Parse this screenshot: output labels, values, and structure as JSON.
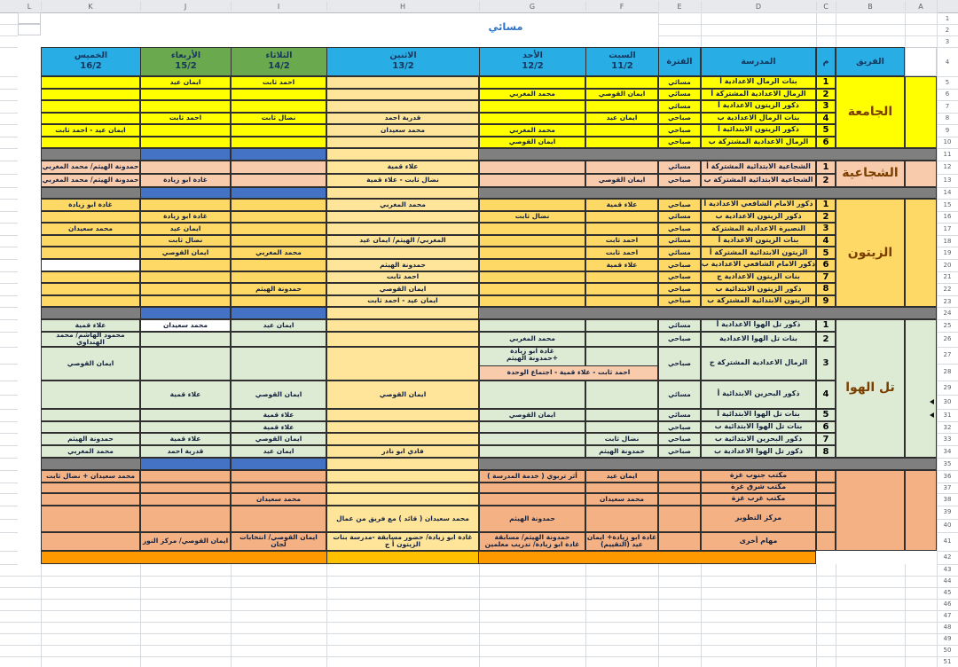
{
  "sheet": {
    "title": "مسائي",
    "column_letters": [
      "L",
      "K",
      "J",
      "I",
      "H",
      "G",
      "F",
      "E",
      "D",
      "C",
      "B",
      "A"
    ],
    "top_row_numbers": [
      1,
      2,
      3
    ],
    "header_row_number": 4,
    "header": {
      "days": [
        {
          "col": "K",
          "name": "الخميس",
          "date": "16/2",
          "color": "blue"
        },
        {
          "col": "J",
          "name": "الأربعاء",
          "date": "15/2",
          "color": "green"
        },
        {
          "col": "I",
          "name": "الثلاثاء",
          "date": "14/2",
          "color": "green"
        },
        {
          "col": "H",
          "name": "الاثنين",
          "date": "13/2",
          "color": "blue"
        },
        {
          "col": "G",
          "name": "الأحد",
          "date": "12/2",
          "color": "blue"
        },
        {
          "col": "F",
          "name": "السبت",
          "date": "11/2",
          "color": "blue"
        }
      ],
      "period_label": "الفترة",
      "school_label": "المدرسة",
      "num_label": "م",
      "team_label": "الفريق"
    },
    "colors": {
      "header_blue": "#28ADE4",
      "header_green": "#6AA94E",
      "separator_grey": "#7F7F7F",
      "separator_blue": "#4472C4",
      "footer_orange": "#FF9900",
      "footer_amber": "#FFC000",
      "pink": "#F8CBAD"
    },
    "sections": [
      {
        "label": "الجامعة",
        "bg": "#FFFF00",
        "hbg": "#FFE59A",
        "rows": [
          {
            "n": "1",
            "school": "بنات الرمال الاعدادية أ",
            "shift": "مسائي",
            "rownums": [
              5
            ],
            "cells": {
              "J": "ايمان عيد",
              "I": "احمد ثابت"
            }
          },
          {
            "n": "2",
            "school": "الرمال الاعدادية المشتركة أ",
            "shift": "مسائي",
            "rownums": [
              6
            ],
            "cells": {
              "G": "محمد المغربي",
              "F": "ايمان القوصي"
            }
          },
          {
            "n": "3",
            "school": "ذكور الزيتون الاعدادية أ",
            "shift": "مسائي",
            "rownums": [
              7
            ],
            "cells": {}
          },
          {
            "n": "4",
            "school": "بنات الرمال الاعدادية ب",
            "shift": "صباحي",
            "rownums": [
              8
            ],
            "cells": {
              "J": "احمد ثابت",
              "I": "نضال ثابت",
              "H": "قدرية احمد",
              "F": "ايمان عيد"
            }
          },
          {
            "n": "5",
            "school": "ذكور الزيتون الابتدائية أ",
            "shift": "صباحي",
            "rownums": [
              9
            ],
            "cells": {
              "K": "ايمان عيد - احمد ثابت",
              "H": "محمد سعيدان",
              "G": "محمد المغربي"
            }
          },
          {
            "n": "6",
            "school": "الرمال الاعدادية المشتركة ب",
            "shift": "صباحي",
            "rownums": [
              10
            ],
            "cells": {
              "G": "ايمان القوصي"
            }
          }
        ]
      },
      {
        "label": "الشجاعية",
        "bg": "#F7CBAC",
        "hbg": "#FFE59A",
        "rows": [
          {
            "n": "1",
            "school": "الشجاعية الابتدائية المشتركة أ",
            "shift": "مسائي",
            "rownums": [
              12
            ],
            "cells": {
              "K": "حمدونة الهيثم/ محمد المغربي",
              "H": "علاء قمية"
            }
          },
          {
            "n": "2",
            "school": "الشجاعية الابتدائية المشتركة ب",
            "shift": "صباحي",
            "rownums": [
              13
            ],
            "cells": {
              "K": "حمدونة الهيثم/ محمد المغربي",
              "J": "غادة ابو زيادة",
              "H": "نضال ثابت - علاء قمية",
              "F": "ايمان القوصي"
            }
          }
        ]
      },
      {
        "label": "الزيتون",
        "bg": "#FFD966",
        "hbg": "#FFE59A",
        "rows": [
          {
            "n": "1",
            "school": "ذكور الامام الشافعي الاعدادية أ",
            "shift": "صباحي",
            "rownums": [
              15
            ],
            "cells": {
              "K": "غادة ابو زيادة",
              "H": "محمد المغربي",
              "F": "علاء قمية"
            }
          },
          {
            "n": "2",
            "school": "ذكور الزيتون الاعدادية ب",
            "shift": "مسائي",
            "rownums": [
              16
            ],
            "cells": {
              "J": "غادة ابو زيادة",
              "G": "نضال ثابت"
            }
          },
          {
            "n": "3",
            "school": "النصيرة الاعدادية المشتركة",
            "shift": "صباحي",
            "rownums": [
              17
            ],
            "cells": {
              "K": "محمد سعيدان",
              "J": "ايمان عيد"
            }
          },
          {
            "n": "4",
            "school": "بنات الزيتون الاعدادية أ",
            "shift": "مسائي",
            "rownums": [
              18
            ],
            "cells": {
              "J": "نضال ثابت",
              "H": "المغربي/ الهيثم/ ايمان عيد",
              "F": "احمد ثابت"
            }
          },
          {
            "n": "5",
            "school": "الزيتون الابتدائية المشتركة أ",
            "shift": "مسائي",
            "rownums": [
              19
            ],
            "cells": {
              "J": "ايمان القوصي",
              "I": "محمد المغربي",
              "F": "احمد ثابت"
            }
          },
          {
            "n": "6",
            "school": "ذكور الامام الشافعي الاعدادية ب",
            "shift": "صباحي",
            "rownums": [
              20
            ],
            "white": [
              "K"
            ],
            "cells": {
              "H": "حمدونة الهيثم",
              "F": "علاء قمية"
            }
          },
          {
            "n": "7",
            "school": "بنات الزيتون الاعدادية ج",
            "shift": "صباحي",
            "rownums": [
              21
            ],
            "cells": {
              "H": "احمد ثابت"
            }
          },
          {
            "n": "8",
            "school": "ذكور الزيتون الابتدائية ب",
            "shift": "صباحي",
            "rownums": [
              22
            ],
            "cells": {
              "I": "حمدونة الهيثم",
              "H": "ايمان القوصي"
            }
          },
          {
            "n": "9",
            "school": "الزيتون الابتدائية المشتركة ب",
            "shift": "صباحي",
            "rownums": [
              23
            ],
            "cells": {
              "H": "ايمان عيد - احمد ثابت"
            }
          }
        ]
      },
      {
        "label": "تل الهوا",
        "bg": "#DDEBD4",
        "hbg": "#FFE59A",
        "rows": [
          {
            "n": "1",
            "school": "ذكور تل الهوا الاعدادية أ",
            "shift": "مسائي",
            "rownums": [
              25
            ],
            "white": [
              "J"
            ],
            "cells": {
              "K": "علاء قمية",
              "J": "محمد سعيدان",
              "I": "ايمان عيد"
            }
          },
          {
            "n": "2",
            "school": "بنات تل الهوا الاعدادية",
            "shift": "صباحي",
            "rownums": [
              26
            ],
            "cells": {
              "K": "محمود الهاشم/ محمد الهنداوي",
              "G": "محمد المغربي"
            }
          },
          {
            "n": "3",
            "school": "الرمال الاعدادية المشتركة ج",
            "shift": "صباحي",
            "rownums": [
              27,
              28
            ],
            "cells": {
              "K": "ايمان القوصي",
              "G": "غادة ابو زيادة\n+حمدونة الهيثم"
            },
            "pink_band": "احمد ثابت - علاء قمية - اجتماع الوحدة"
          },
          {
            "n": "4",
            "school": "ذكور البحرين الابتدائية أ",
            "shift": "مسائي",
            "rownums": [
              29,
              30
            ],
            "cells": {
              "J": "علاء قمية",
              "I": "ايمان القوصي",
              "H": "ايمان القوصي"
            }
          },
          {
            "n": "5",
            "school": "بنات تل الهوا الابتدائية أ",
            "shift": "مسائي",
            "rownums": [
              31
            ],
            "cells": {
              "I": "علاء قمية",
              "G": "ايمان القوصي"
            }
          },
          {
            "n": "6",
            "school": "بنات تل الهوا الابتدائية ب",
            "shift": "صباحي",
            "rownums": [
              32
            ],
            "cells": {
              "I": "علاء قمية"
            }
          },
          {
            "n": "7",
            "school": "ذكور البحرين الابتدائية ب",
            "shift": "صباحي",
            "rownums": [
              33
            ],
            "cells": {
              "K": "حمدونة الهيثم",
              "J": "علاء قمية",
              "I": "ايمان القوصي",
              "F": "نضال ثابت"
            }
          },
          {
            "n": "8",
            "school": "ذكور تل الهوا الاعدادية ب",
            "shift": "صباحي",
            "rownums": [
              34
            ],
            "cells": {
              "K": "محمد المغربي",
              "J": "قدرية احمد",
              "I": "ايمان عيد",
              "H": "فادي ابو نادر",
              "F": "حمدونة الهيثم"
            }
          }
        ]
      },
      {
        "label": "",
        "bg": "#F4B183",
        "hbg": "#FFE59A",
        "rows": [
          {
            "n": "",
            "school": "مكتب جنوب غزة",
            "shift": "",
            "rownums": [
              36
            ],
            "cells": {
              "K": "محمد سعيدان + نضال ثابت",
              "G": "أثر تربوي ( خدمة المدرسة )",
              "F": "ايمان عيد"
            }
          },
          {
            "n": "",
            "school": "مكتب شرق غزة",
            "shift": "",
            "rownums": [
              37
            ],
            "cells": {}
          },
          {
            "n": "",
            "school": "مكتب غرب غزة",
            "shift": "",
            "rownums": [
              38
            ],
            "cells": {
              "I": "محمد سعيدان",
              "F": "محمد سعيدان"
            }
          },
          {
            "n": "",
            "school": "مركز التطوير",
            "shift": "",
            "rownums": [
              39,
              40
            ],
            "cells": {
              "H": "محمد سعيدان ( قائد ) مع فريق من عمال",
              "G": "حمدونة الهيثم"
            }
          },
          {
            "n": "",
            "school": "مهام أخرى",
            "shift": "",
            "rownums": [
              41
            ],
            "cells": {
              "J": "ايمان القوصي/ مركز النور",
              "I": "ايمان القوصي/ انتخابات لجان",
              "H": "غادة ابو زيادة/ حضور مسابقة -مدرسة بنات الزيتون أ ج",
              "G": "حمدونة الهيثم/ مسابقة\nغادة ابو زيادة/ تدريب معلمين",
              "F": "غادة ابو زيادة+ ايمان عيد (التقييم)"
            }
          }
        ]
      }
    ],
    "separator_row_numbers": [
      11,
      14,
      24,
      35
    ],
    "footer_row_number": 42,
    "trailing_row_numbers": [
      43,
      44,
      45,
      46,
      47,
      48,
      49,
      50,
      51
    ],
    "row_group_marker_rows": [
      30,
      31
    ]
  }
}
